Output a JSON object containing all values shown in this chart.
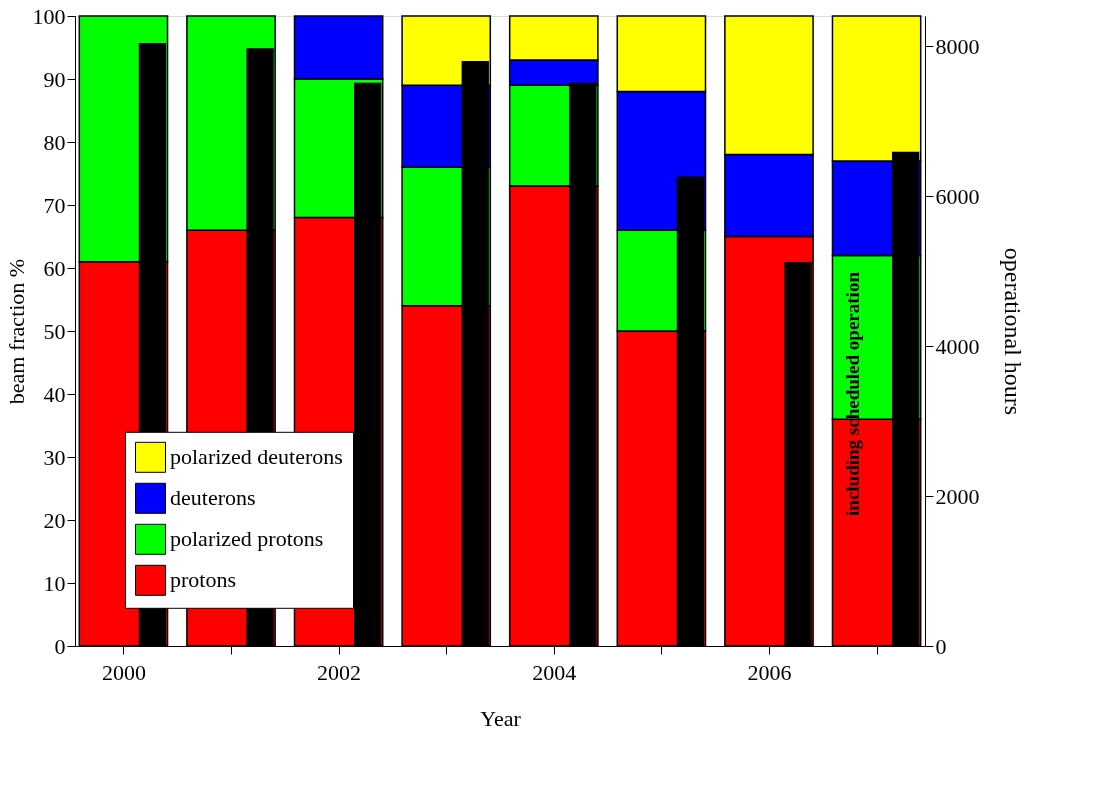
{
  "chart_data": {
    "type": "bar",
    "stacked": true,
    "xlabel": "Year",
    "ylabel": "beam fraction %",
    "y2label": "operational hours",
    "categories": [
      "2000",
      null,
      "2002",
      null,
      "2004",
      null,
      "2006",
      null
    ],
    "ylim": [
      0,
      100
    ],
    "yticks": [
      0,
      10,
      20,
      30,
      40,
      50,
      60,
      70,
      80,
      90,
      100
    ],
    "y2lim": [
      0,
      8400
    ],
    "y2ticks": [
      0,
      2000,
      4000,
      6000,
      8000
    ],
    "grid": false,
    "legend": "bottom left",
    "annotations": [
      "including scheduled operation"
    ],
    "series": [
      {
        "name": "protons",
        "color": "#ff0000",
        "values": [
          61,
          66,
          68,
          54,
          73,
          50,
          65,
          36
        ]
      },
      {
        "name": "polarized protons",
        "color": "#00ff00",
        "values": [
          39,
          34,
          22,
          22,
          16,
          16,
          0,
          26
        ]
      },
      {
        "name": "deuterons",
        "color": "#0000ff",
        "values": [
          0,
          0,
          10,
          13,
          4,
          22,
          13,
          15
        ]
      },
      {
        "name": "polarized deuterons",
        "color": "#ffff00",
        "values": [
          0,
          0,
          0,
          11,
          7,
          12,
          22,
          23
        ]
      },
      {
        "type": "bar",
        "axis": "y2",
        "color": "#000000",
        "values": [
          8030,
          7960,
          7500,
          7790,
          7500,
          6250,
          5110,
          6580
        ]
      }
    ]
  }
}
